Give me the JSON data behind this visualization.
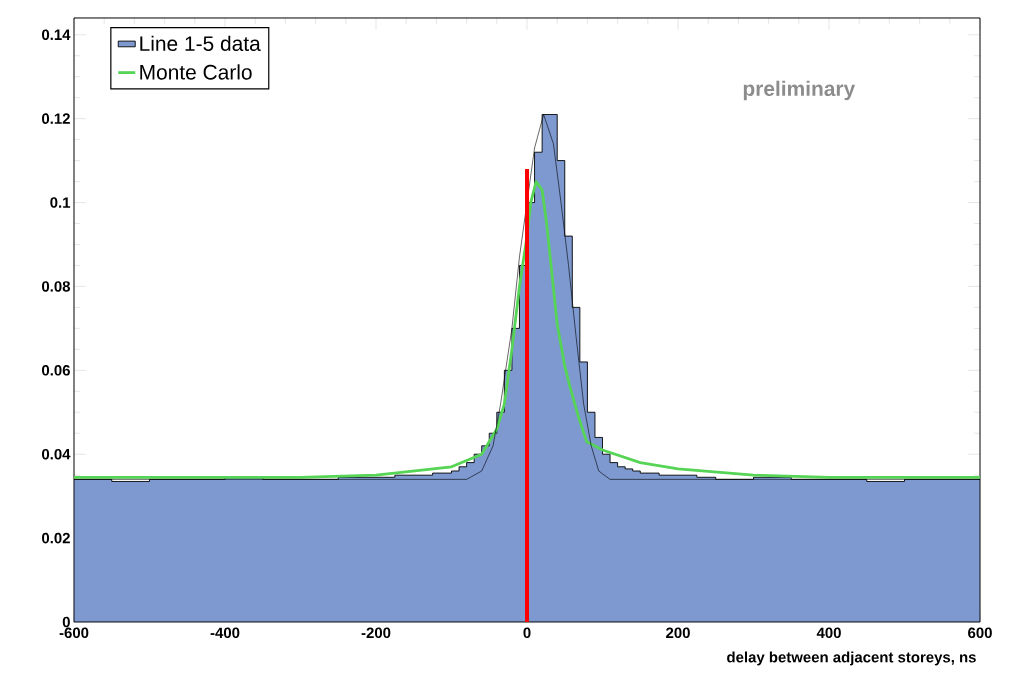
{
  "chart_data": {
    "type": "histogram",
    "xlabel": "delay between adjacent storeys, ns",
    "annotations": [
      "preliminary"
    ],
    "bins": [
      -600,
      -550,
      -500,
      -450,
      -400,
      -350,
      -300,
      -250,
      -200,
      -175,
      -150,
      -125,
      -100,
      -90,
      -80,
      -70,
      -60,
      -50,
      -40,
      -30,
      -20,
      -10,
      0,
      10,
      20,
      30,
      40,
      50,
      60,
      70,
      80,
      90,
      100,
      110,
      120,
      130,
      140,
      150,
      175,
      200,
      225,
      250,
      300,
      350,
      400,
      450,
      500,
      550,
      600
    ],
    "series": [
      {
        "name": "Line 1-5 data",
        "color": "#7d99d0",
        "values": [
          0.034,
          0.0335,
          0.034,
          0.034,
          0.0345,
          0.034,
          0.034,
          0.0345,
          0.0345,
          0.035,
          0.035,
          0.0355,
          0.036,
          0.037,
          0.038,
          0.04,
          0.042,
          0.045,
          0.05,
          0.06,
          0.07,
          0.085,
          0.1,
          0.112,
          0.121,
          0.121,
          0.11,
          0.092,
          0.075,
          0.062,
          0.05,
          0.044,
          0.04,
          0.038,
          0.037,
          0.0365,
          0.036,
          0.0355,
          0.035,
          0.035,
          0.0345,
          0.034,
          0.0345,
          0.034,
          0.034,
          0.0335,
          0.034,
          0.034
        ]
      },
      {
        "type": "line",
        "name": "Monte Carlo",
        "color": "#55d455",
        "x": [
          -600,
          -300,
          -200,
          -100,
          -60,
          -40,
          -30,
          -20,
          -10,
          0,
          5,
          12,
          20,
          26,
          33,
          40,
          50,
          57,
          68,
          79,
          100,
          150,
          200,
          300,
          400,
          600
        ],
        "values": [
          0.0345,
          0.0345,
          0.035,
          0.037,
          0.04,
          0.046,
          0.052,
          0.065,
          0.08,
          0.092,
          0.1,
          0.105,
          0.103,
          0.095,
          0.083,
          0.071,
          0.061,
          0.056,
          0.049,
          0.043,
          0.041,
          0.038,
          0.0365,
          0.035,
          0.0345,
          0.0345
        ]
      },
      {
        "type": "line",
        "color": "#000000",
        "x": [
          -600,
          -80,
          -60,
          -45,
          -35,
          -20,
          -10,
          10,
          22,
          35,
          45,
          55,
          65,
          75,
          85,
          95,
          110,
          600
        ],
        "values": [
          0.034,
          0.034,
          0.036,
          0.042,
          0.052,
          0.07,
          0.087,
          0.113,
          0.121,
          0.114,
          0.1,
          0.085,
          0.068,
          0.052,
          0.042,
          0.036,
          0.034,
          0.034
        ]
      },
      {
        "type": "line",
        "color": "#ff0000",
        "x": [
          0,
          0
        ],
        "values": [
          0,
          0.108
        ]
      }
    ],
    "xlim": [
      -600,
      600
    ],
    "ylim": [
      0,
      0.144
    ],
    "xticks": [
      -600,
      -400,
      -200,
      0,
      200,
      400,
      600
    ],
    "yticks": [
      0,
      0.02,
      0.04,
      0.06,
      0.08,
      0.1,
      0.12,
      0.14
    ],
    "legend": "top left"
  }
}
